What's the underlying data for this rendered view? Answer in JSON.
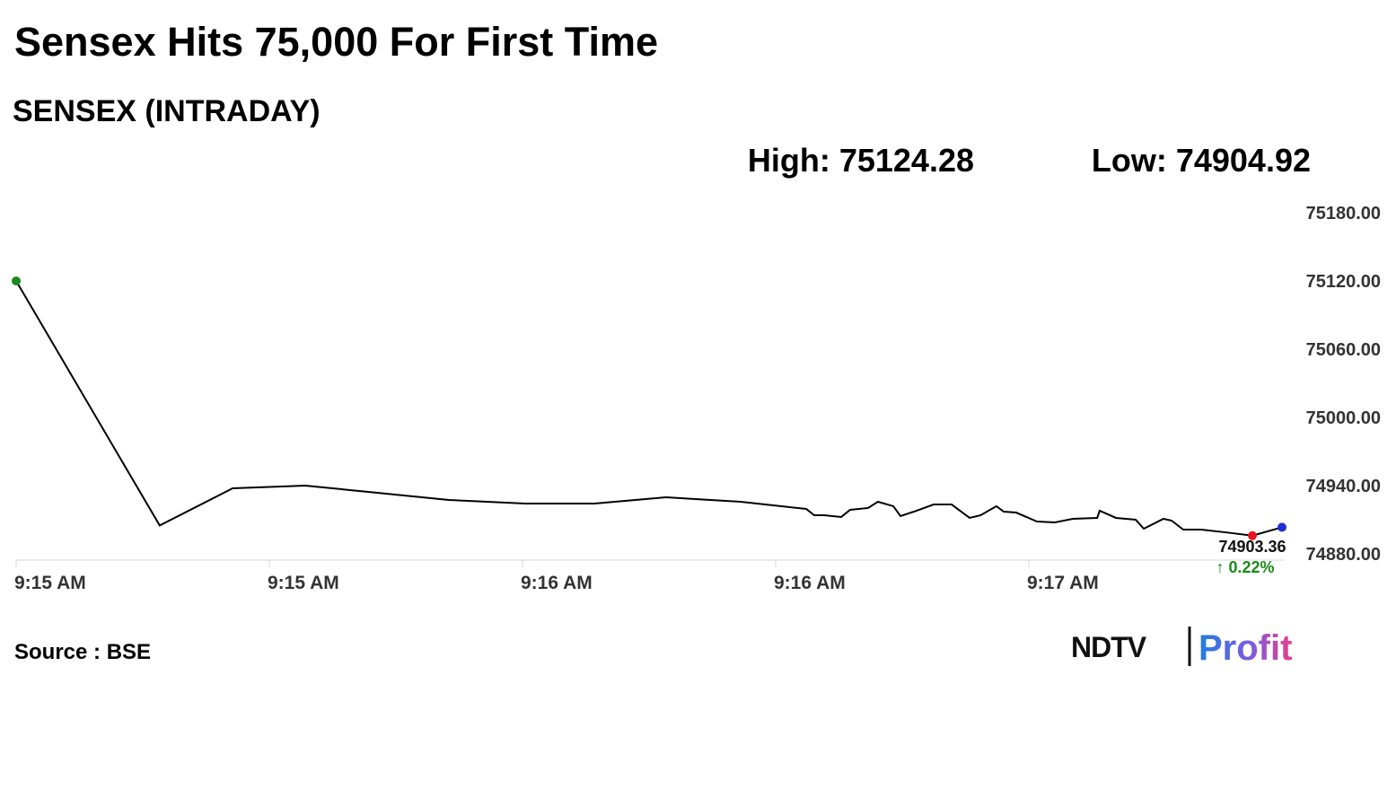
{
  "chart_data": {
    "type": "line",
    "title": "Sensex Hits 75,000 For First Time",
    "subtitle": "SENSEX (INTRADAY)",
    "high_text": "High: 75124.28",
    "low_text": "Low: 74904.92",
    "x": [
      0,
      0.567,
      0.855,
      1.142,
      1.426,
      1.709,
      2.011,
      2.284,
      2.567,
      2.862,
      3.121,
      3.152,
      3.191,
      3.259,
      3.294,
      3.365,
      3.404,
      3.465,
      3.493,
      3.546,
      3.624,
      3.695,
      3.766,
      3.809,
      3.872,
      3.901,
      3.95,
      4.032,
      4.103,
      4.174,
      4.27,
      4.28,
      4.344,
      4.422,
      4.454,
      4.532,
      4.564,
      4.61,
      4.681,
      4.777,
      4.883,
      5.0
    ],
    "series": [
      {
        "color": "#000000",
        "values": [
          75120,
          74904.92,
          74937.6,
          74940,
          74933.7,
          74927.4,
          74924.2,
          74924.2,
          74929.7,
          74925.8,
          74919.5,
          74913.9,
          74913.9,
          74912.4,
          74918.7,
          74920.3,
          74925.8,
          74921.9,
          74913.2,
          74917.1,
          74923.4,
          74923.4,
          74911.6,
          74913.9,
          74921.9,
          74917.1,
          74916.3,
          74908.4,
          74907.6,
          74910.8,
          74911.6,
          74917.9,
          74911.6,
          74910.0,
          74902.1,
          74910.8,
          74909.2,
          74901.3,
          74901.3,
          74898.9,
          74896,
          74903.36
        ]
      }
    ],
    "start_color": "#1a8a1a",
    "end_color": "#1d2fd8",
    "previous_color": "#e8141e",
    "change_text": "↑ 0.22%",
    "change_color": "#1a8a1a",
    "xlim": [
      0,
      5
    ],
    "xticks": [
      {
        "value": 0,
        "label": "9:15 AM"
      },
      {
        "value": 1,
        "label": "9:15 AM"
      },
      {
        "value": 2,
        "label": "9:16 AM"
      },
      {
        "value": 3,
        "label": "9:16 AM"
      },
      {
        "value": 4,
        "label": "9:17 AM"
      }
    ],
    "ylim": [
      74880,
      75180
    ],
    "yticks": [
      {
        "value": 75180,
        "label": "75180.00"
      },
      {
        "value": 75120,
        "label": "75120.00"
      },
      {
        "value": 75060,
        "label": "75060.00"
      },
      {
        "value": 75000,
        "label": "75000.00"
      },
      {
        "value": 74940,
        "label": "74940.00"
      },
      {
        "value": 74880,
        "label": "74880.00"
      }
    ],
    "source": "Source : BSE",
    "logo": {
      "left": "NDTV",
      "right": "Profit"
    }
  }
}
